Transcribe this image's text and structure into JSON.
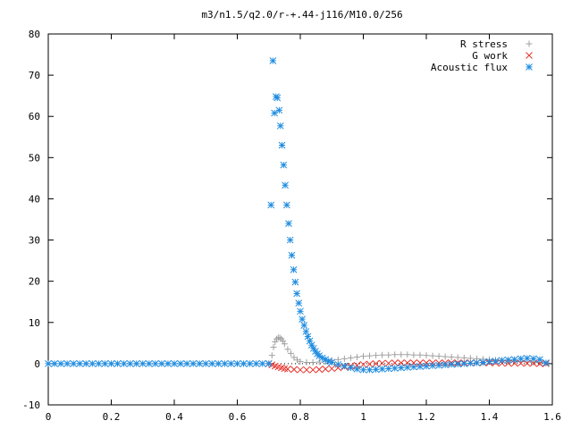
{
  "chart_data": {
    "type": "scatter",
    "title": "m3/n1.5/q2.0/r-+.44-j116/M10.0/256",
    "xlabel": "",
    "ylabel": "",
    "xlim": [
      0,
      1.6
    ],
    "ylim": [
      -10,
      80
    ],
    "x_ticks": [
      "0",
      "0.2",
      "0.4",
      "0.6",
      "0.8",
      "1",
      "1.2",
      "1.4",
      "1.6"
    ],
    "y_ticks": [
      "-10",
      "0",
      "10",
      "20",
      "30",
      "40",
      "50",
      "60",
      "70",
      "80"
    ],
    "grid": false,
    "legend_position": "top-right",
    "series": [
      {
        "name": "R stress",
        "marker": "plus",
        "color": "#a0a0a0",
        "points": [
          [
            0.7,
            0.0
          ],
          [
            0.71,
            2.0
          ],
          [
            0.715,
            4.0
          ],
          [
            0.72,
            5.3
          ],
          [
            0.725,
            6.0
          ],
          [
            0.73,
            6.3
          ],
          [
            0.735,
            6.3
          ],
          [
            0.74,
            6.0
          ],
          [
            0.745,
            5.5
          ],
          [
            0.75,
            4.8
          ],
          [
            0.76,
            3.5
          ],
          [
            0.77,
            2.5
          ],
          [
            0.78,
            1.5
          ],
          [
            0.79,
            0.9
          ],
          [
            0.8,
            0.5
          ],
          [
            0.82,
            0.3
          ],
          [
            0.84,
            0.3
          ],
          [
            0.86,
            0.4
          ],
          [
            0.88,
            0.6
          ],
          [
            0.9,
            0.8
          ],
          [
            0.92,
            1.0
          ],
          [
            0.94,
            1.2
          ],
          [
            0.96,
            1.4
          ],
          [
            0.98,
            1.6
          ],
          [
            1.0,
            1.8
          ],
          [
            1.02,
            1.9
          ],
          [
            1.04,
            2.0
          ],
          [
            1.06,
            2.1
          ],
          [
            1.08,
            2.1
          ],
          [
            1.1,
            2.2
          ],
          [
            1.12,
            2.2
          ],
          [
            1.14,
            2.2
          ],
          [
            1.16,
            2.1
          ],
          [
            1.18,
            2.1
          ],
          [
            1.2,
            2.0
          ],
          [
            1.22,
            1.9
          ],
          [
            1.24,
            1.8
          ],
          [
            1.26,
            1.7
          ],
          [
            1.28,
            1.6
          ],
          [
            1.3,
            1.5
          ],
          [
            1.32,
            1.4
          ],
          [
            1.34,
            1.3
          ],
          [
            1.36,
            1.2
          ],
          [
            1.38,
            1.1
          ],
          [
            1.4,
            1.0
          ],
          [
            1.42,
            0.9
          ],
          [
            1.44,
            0.8
          ],
          [
            1.46,
            0.7
          ],
          [
            1.48,
            0.6
          ],
          [
            1.5,
            0.5
          ],
          [
            1.52,
            0.4
          ],
          [
            1.54,
            0.3
          ],
          [
            1.56,
            0.2
          ],
          [
            1.58,
            0.1
          ]
        ]
      },
      {
        "name": "G work",
        "marker": "cross",
        "color": "#e8312a",
        "points": [
          [
            0.7,
            0.0
          ],
          [
            0.71,
            -0.3
          ],
          [
            0.72,
            -0.6
          ],
          [
            0.73,
            -0.8
          ],
          [
            0.74,
            -1.0
          ],
          [
            0.75,
            -1.2
          ],
          [
            0.76,
            -1.3
          ],
          [
            0.78,
            -1.4
          ],
          [
            0.8,
            -1.5
          ],
          [
            0.82,
            -1.5
          ],
          [
            0.84,
            -1.5
          ],
          [
            0.86,
            -1.4
          ],
          [
            0.88,
            -1.3
          ],
          [
            0.9,
            -1.2
          ],
          [
            0.92,
            -1.0
          ],
          [
            0.94,
            -0.8
          ],
          [
            0.96,
            -0.6
          ],
          [
            0.98,
            -0.4
          ],
          [
            1.0,
            -0.2
          ],
          [
            1.02,
            -0.1
          ],
          [
            1.04,
            0.0
          ],
          [
            1.06,
            0.1
          ],
          [
            1.08,
            0.1
          ],
          [
            1.1,
            0.2
          ],
          [
            1.12,
            0.2
          ],
          [
            1.14,
            0.2
          ],
          [
            1.16,
            0.2
          ],
          [
            1.18,
            0.2
          ],
          [
            1.2,
            0.2
          ],
          [
            1.22,
            0.2
          ],
          [
            1.24,
            0.2
          ],
          [
            1.26,
            0.2
          ],
          [
            1.28,
            0.2
          ],
          [
            1.3,
            0.2
          ],
          [
            1.32,
            0.2
          ],
          [
            1.34,
            0.2
          ],
          [
            1.36,
            0.2
          ],
          [
            1.38,
            0.2
          ],
          [
            1.4,
            0.2
          ],
          [
            1.42,
            0.2
          ],
          [
            1.44,
            0.1
          ],
          [
            1.46,
            0.1
          ],
          [
            1.48,
            0.1
          ],
          [
            1.5,
            0.1
          ],
          [
            1.52,
            0.1
          ],
          [
            1.54,
            0.1
          ],
          [
            1.56,
            0.0
          ],
          [
            1.58,
            0.0
          ]
        ]
      },
      {
        "name": "Acoustic flux",
        "marker": "star",
        "color": "#1f8ce0",
        "points": [
          [
            0.0,
            0.0
          ],
          [
            0.02,
            0.0
          ],
          [
            0.04,
            0.0
          ],
          [
            0.06,
            0.0
          ],
          [
            0.08,
            0.0
          ],
          [
            0.1,
            0.0
          ],
          [
            0.12,
            0.0
          ],
          [
            0.14,
            0.0
          ],
          [
            0.16,
            0.0
          ],
          [
            0.18,
            0.0
          ],
          [
            0.2,
            0.0
          ],
          [
            0.22,
            0.0
          ],
          [
            0.24,
            0.0
          ],
          [
            0.26,
            0.0
          ],
          [
            0.28,
            0.0
          ],
          [
            0.3,
            0.0
          ],
          [
            0.32,
            0.0
          ],
          [
            0.34,
            0.0
          ],
          [
            0.36,
            0.0
          ],
          [
            0.38,
            0.0
          ],
          [
            0.4,
            0.0
          ],
          [
            0.42,
            0.0
          ],
          [
            0.44,
            0.0
          ],
          [
            0.46,
            0.0
          ],
          [
            0.48,
            0.0
          ],
          [
            0.5,
            0.0
          ],
          [
            0.52,
            0.0
          ],
          [
            0.54,
            0.0
          ],
          [
            0.56,
            0.0
          ],
          [
            0.58,
            0.0
          ],
          [
            0.6,
            0.0
          ],
          [
            0.62,
            0.0
          ],
          [
            0.64,
            0.0
          ],
          [
            0.66,
            0.0
          ],
          [
            0.68,
            0.0
          ],
          [
            0.7,
            0.0
          ],
          [
            0.707,
            38.5
          ],
          [
            0.713,
            73.5
          ],
          [
            0.718,
            60.8
          ],
          [
            0.723,
            64.8
          ],
          [
            0.727,
            64.5
          ],
          [
            0.733,
            61.5
          ],
          [
            0.737,
            57.7
          ],
          [
            0.742,
            53.0
          ],
          [
            0.747,
            48.2
          ],
          [
            0.752,
            43.3
          ],
          [
            0.757,
            38.5
          ],
          [
            0.763,
            34.0
          ],
          [
            0.768,
            30.0
          ],
          [
            0.773,
            26.3
          ],
          [
            0.779,
            22.8
          ],
          [
            0.784,
            19.8
          ],
          [
            0.789,
            17.0
          ],
          [
            0.795,
            14.7
          ],
          [
            0.8,
            12.7
          ],
          [
            0.806,
            10.8
          ],
          [
            0.812,
            9.3
          ],
          [
            0.818,
            7.8
          ],
          [
            0.824,
            6.6
          ],
          [
            0.83,
            5.5
          ],
          [
            0.836,
            4.5
          ],
          [
            0.842,
            3.7
          ],
          [
            0.848,
            3.0
          ],
          [
            0.854,
            2.4
          ],
          [
            0.86,
            1.9
          ],
          [
            0.87,
            1.4
          ],
          [
            0.88,
            1.0
          ],
          [
            0.89,
            0.6
          ],
          [
            0.9,
            0.3
          ],
          [
            0.92,
            -0.2
          ],
          [
            0.94,
            -0.6
          ],
          [
            0.96,
            -1.0
          ],
          [
            0.98,
            -1.3
          ],
          [
            1.0,
            -1.5
          ],
          [
            1.02,
            -1.5
          ],
          [
            1.04,
            -1.4
          ],
          [
            1.06,
            -1.3
          ],
          [
            1.08,
            -1.2
          ],
          [
            1.1,
            -1.1
          ],
          [
            1.12,
            -1.0
          ],
          [
            1.14,
            -0.9
          ],
          [
            1.16,
            -0.8
          ],
          [
            1.18,
            -0.7
          ],
          [
            1.2,
            -0.6
          ],
          [
            1.22,
            -0.5
          ],
          [
            1.24,
            -0.4
          ],
          [
            1.26,
            -0.3
          ],
          [
            1.28,
            -0.2
          ],
          [
            1.3,
            -0.1
          ],
          [
            1.32,
            0.0
          ],
          [
            1.34,
            0.1
          ],
          [
            1.36,
            0.2
          ],
          [
            1.38,
            0.3
          ],
          [
            1.4,
            0.5
          ],
          [
            1.42,
            0.6
          ],
          [
            1.44,
            0.8
          ],
          [
            1.46,
            0.9
          ],
          [
            1.48,
            1.0
          ],
          [
            1.5,
            1.2
          ],
          [
            1.52,
            1.3
          ],
          [
            1.54,
            1.2
          ],
          [
            1.56,
            1.0
          ],
          [
            1.58,
            0.2
          ]
        ]
      }
    ]
  }
}
